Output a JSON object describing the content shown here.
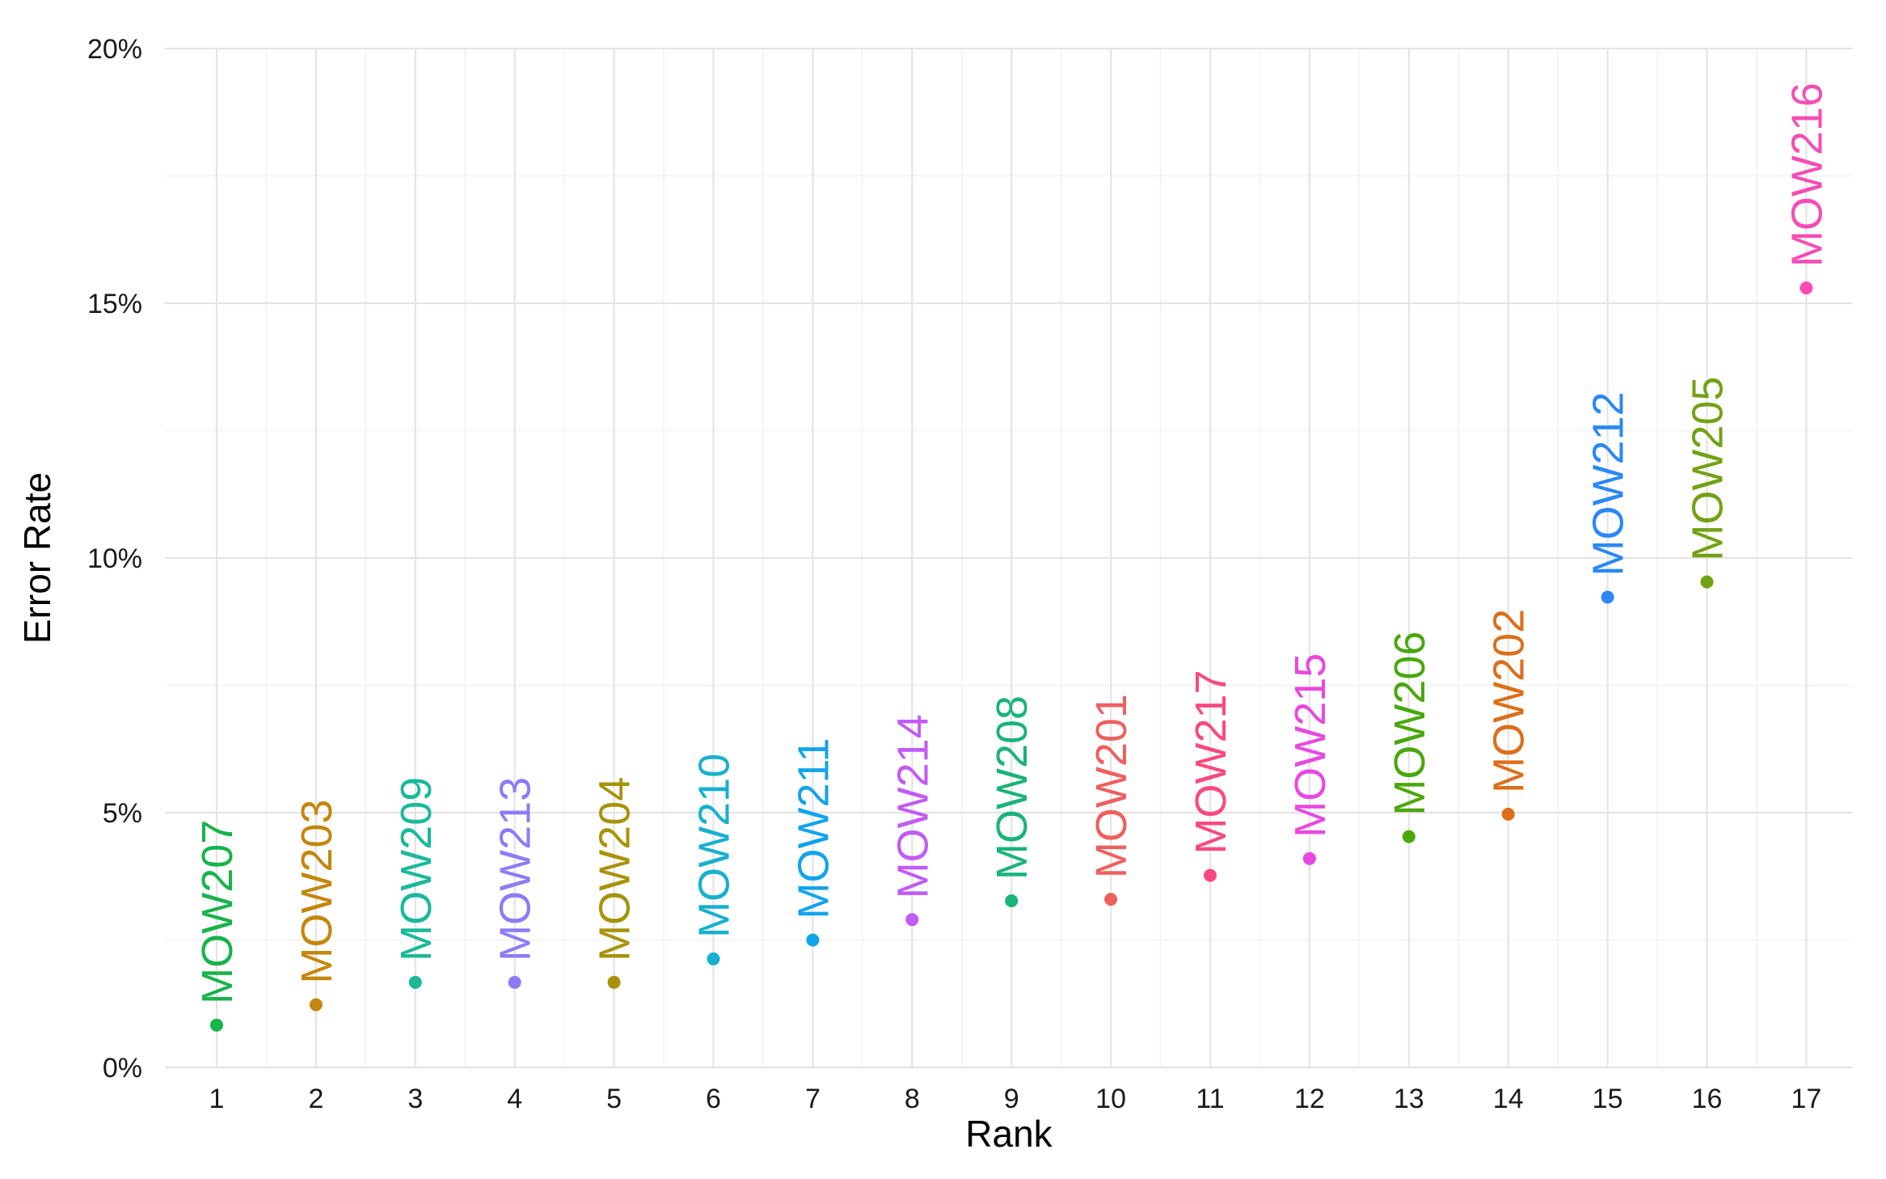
{
  "chart_data": {
    "type": "scatter",
    "xlabel": "Rank",
    "ylabel": "Error Rate",
    "xlim": [
      0.5,
      17.5
    ],
    "ylim": [
      0,
      0.2
    ],
    "x_ticks": [
      1,
      2,
      3,
      4,
      5,
      6,
      7,
      8,
      9,
      10,
      11,
      12,
      13,
      14,
      15,
      16,
      17
    ],
    "y_ticks": [
      0,
      0.05,
      0.1,
      0.15,
      0.2
    ],
    "y_tick_labels": [
      "0%",
      "5%",
      "10%",
      "15%",
      "20%"
    ],
    "grid": true,
    "legend": "none",
    "points": [
      {
        "x": 1,
        "y": 0.0083,
        "label": "MOW207",
        "color": "#17b34b"
      },
      {
        "x": 2,
        "y": 0.0123,
        "label": "MOW203",
        "color": "#c4870b"
      },
      {
        "x": 3,
        "y": 0.0167,
        "label": "MOW209",
        "color": "#1ab99a"
      },
      {
        "x": 4,
        "y": 0.0167,
        "label": "MOW213",
        "color": "#8b7cf6"
      },
      {
        "x": 5,
        "y": 0.0167,
        "label": "MOW204",
        "color": "#a89208"
      },
      {
        "x": 6,
        "y": 0.0213,
        "label": "MOW210",
        "color": "#17b0cf"
      },
      {
        "x": 7,
        "y": 0.025,
        "label": "MOW211",
        "color": "#12a4ea"
      },
      {
        "x": 8,
        "y": 0.029,
        "label": "MOW214",
        "color": "#c25af5"
      },
      {
        "x": 9,
        "y": 0.0327,
        "label": "MOW208",
        "color": "#1ab37a"
      },
      {
        "x": 10,
        "y": 0.033,
        "label": "MOW201",
        "color": "#ef5f5f"
      },
      {
        "x": 11,
        "y": 0.0377,
        "label": "MOW217",
        "color": "#f9497f"
      },
      {
        "x": 12,
        "y": 0.041,
        "label": "MOW215",
        "color": "#e848e0"
      },
      {
        "x": 13,
        "y": 0.0453,
        "label": "MOW206",
        "color": "#49a80c"
      },
      {
        "x": 14,
        "y": 0.0497,
        "label": "MOW202",
        "color": "#dc6f1a"
      },
      {
        "x": 15,
        "y": 0.0923,
        "label": "MOW212",
        "color": "#2b88f5"
      },
      {
        "x": 16,
        "y": 0.0953,
        "label": "MOW205",
        "color": "#73a114"
      },
      {
        "x": 17,
        "y": 0.153,
        "label": "MOW216",
        "color": "#f64cb4"
      }
    ]
  }
}
